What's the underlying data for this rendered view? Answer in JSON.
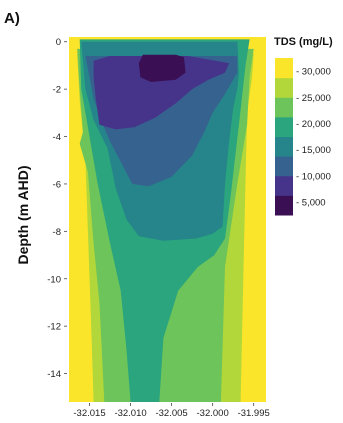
{
  "panel_label": "A)",
  "chart_data": {
    "type": "heatmap",
    "xlabel": "",
    "ylabel": "Depth (m AHD)",
    "x_ticks": [
      -32.015,
      -32.01,
      -32.005,
      -32.0,
      -31.995
    ],
    "x_tick_labels": [
      "-32.015",
      "-32.010",
      "-32.005",
      "-32.000",
      "-31.995"
    ],
    "xlim": [
      -32.0175,
      -31.9935
    ],
    "y_ticks": [
      0,
      -2,
      -4,
      -6,
      -8,
      -10,
      -12,
      -14
    ],
    "y_tick_labels": [
      "0",
      "-2",
      "-4",
      "-6",
      "-8",
      "-10",
      "-12",
      "-14"
    ],
    "ylim": [
      -15.2,
      0.2
    ],
    "colorbar": {
      "title": "TDS (mg/L)",
      "ticks": [
        30000,
        25000,
        20000,
        15000,
        10000,
        5000
      ],
      "tick_labels": [
        "- 30,000",
        "- 25,000",
        "- 20,000",
        "- 15,000",
        "- 10,000",
        "- 5,000"
      ],
      "range": [
        2500,
        32500
      ],
      "colors": [
        "#3b0f53",
        "#46338a",
        "#36628f",
        "#26848b",
        "#2aa57e",
        "#6cc45a",
        "#b2d73a",
        "#fbe52a"
      ]
    },
    "levels": [
      {
        "tds": 30000,
        "color": "#fbe52a",
        "polygon": [
          [
            -32.0175,
            0.2
          ],
          [
            -31.9935,
            0.2
          ],
          [
            -31.9935,
            -15.2
          ],
          [
            -32.0175,
            -15.2
          ]
        ]
      },
      {
        "tds": 25000,
        "color": "#b2d73a",
        "polygon": [
          [
            -32.0165,
            -0.5
          ],
          [
            -31.995,
            -0.5
          ],
          [
            -31.9952,
            -1.5
          ],
          [
            -31.9958,
            -3.0
          ],
          [
            -31.9962,
            -9.0
          ],
          [
            -31.9966,
            -15.2
          ],
          [
            -32.0145,
            -15.2
          ],
          [
            -32.0148,
            -12.0
          ],
          [
            -32.0155,
            -5.0
          ],
          [
            -32.0162,
            -2.5
          ]
        ]
      },
      {
        "tds": 20000,
        "color": "#6cc45a",
        "polygon": [
          [
            -32.0165,
            -0.3
          ],
          [
            -31.995,
            -0.3
          ],
          [
            -31.9955,
            -1.5
          ],
          [
            -31.9958,
            -3.5
          ],
          [
            -31.997,
            -6.0
          ],
          [
            -31.9985,
            -9.5
          ],
          [
            -31.999,
            -15.2
          ],
          [
            -32.0132,
            -15.2
          ],
          [
            -32.0135,
            -13.0
          ],
          [
            -32.0138,
            -11.0
          ],
          [
            -32.0145,
            -8.5
          ],
          [
            -32.0152,
            -5.5
          ],
          [
            -32.0162,
            -4.3
          ],
          [
            -32.0158,
            -3.8
          ],
          [
            -32.0162,
            -2.0
          ]
        ]
      },
      {
        "tds": 15000,
        "color": "#2aa57e",
        "polygon": [
          [
            -32.0162,
            0.1
          ],
          [
            -31.9955,
            0.1
          ],
          [
            -31.996,
            -1.0
          ],
          [
            -31.9968,
            -3.5
          ],
          [
            -31.9978,
            -6.5
          ],
          [
            -31.9985,
            -8.3
          ],
          [
            -31.9998,
            -9.0
          ],
          [
            -32.0018,
            -9.5
          ],
          [
            -32.0042,
            -10.5
          ],
          [
            -32.006,
            -12.5
          ],
          [
            -32.0065,
            -15.2
          ],
          [
            -32.01,
            -15.2
          ],
          [
            -32.0105,
            -13.0
          ],
          [
            -32.0112,
            -10.5
          ],
          [
            -32.0125,
            -8.5
          ],
          [
            -32.014,
            -6.0
          ],
          [
            -32.015,
            -4.0
          ],
          [
            -32.016,
            -2.0
          ]
        ]
      },
      {
        "tds": 10000,
        "color": "#26848b",
        "polygon": [
          [
            -32.016,
            0.0
          ],
          [
            -31.997,
            0.0
          ],
          [
            -31.9968,
            -1.3
          ],
          [
            -31.997,
            -2.0
          ],
          [
            -31.9975,
            -2.8
          ],
          [
            -31.998,
            -4.2
          ],
          [
            -31.9985,
            -6.0
          ],
          [
            -31.9988,
            -7.8
          ],
          [
            -32.0,
            -8.1
          ],
          [
            -32.002,
            -8.3
          ],
          [
            -32.006,
            -8.4
          ],
          [
            -32.009,
            -8.2
          ],
          [
            -32.0105,
            -7.5
          ],
          [
            -32.0118,
            -6.2
          ],
          [
            -32.0128,
            -4.5
          ],
          [
            -32.0145,
            -3.3
          ],
          [
            -32.0155,
            -2.0
          ]
        ]
      },
      {
        "tds": 5000,
        "color": "#36628f",
        "polygon": [
          [
            -32.0155,
            -0.6
          ],
          [
            -31.997,
            -0.6
          ],
          [
            -31.997,
            -1.3
          ],
          [
            -31.9985,
            -2.2
          ],
          [
            -32.0,
            -3.0
          ],
          [
            -32.001,
            -3.8
          ],
          [
            -32.0025,
            -4.8
          ],
          [
            -32.005,
            -5.7
          ],
          [
            -32.0078,
            -6.1
          ],
          [
            -32.0098,
            -6.0
          ],
          [
            -32.011,
            -5.2
          ],
          [
            -32.0125,
            -4.2
          ],
          [
            -32.0135,
            -3.4
          ],
          [
            -32.0145,
            -2.4
          ],
          [
            -32.015,
            -1.5
          ]
        ]
      },
      {
        "tds": 2500,
        "color": "#46338a",
        "polygon": [
          [
            -32.0145,
            -0.8
          ],
          [
            -32.0125,
            -0.6
          ],
          [
            -32.009,
            -0.6
          ],
          [
            -32.003,
            -0.6
          ],
          [
            -31.998,
            -0.9
          ],
          [
            -31.9985,
            -1.3
          ],
          [
            -32.0005,
            -1.6
          ],
          [
            -32.0025,
            -2.0
          ],
          [
            -32.0045,
            -2.6
          ],
          [
            -32.007,
            -3.2
          ],
          [
            -32.0095,
            -3.6
          ],
          [
            -32.0118,
            -3.7
          ],
          [
            -32.0138,
            -3.5
          ],
          [
            -32.0142,
            -2.5
          ],
          [
            -32.0145,
            -1.5
          ]
        ]
      },
      {
        "tds": 1000,
        "color": "#3b0f53",
        "polygon": [
          [
            -32.0085,
            -0.55
          ],
          [
            -32.0045,
            -0.55
          ],
          [
            -32.0035,
            -0.65
          ],
          [
            -32.0033,
            -1.3
          ],
          [
            -32.0045,
            -1.6
          ],
          [
            -32.0075,
            -1.7
          ],
          [
            -32.0088,
            -1.5
          ],
          [
            -32.009,
            -0.9
          ]
        ]
      }
    ]
  }
}
